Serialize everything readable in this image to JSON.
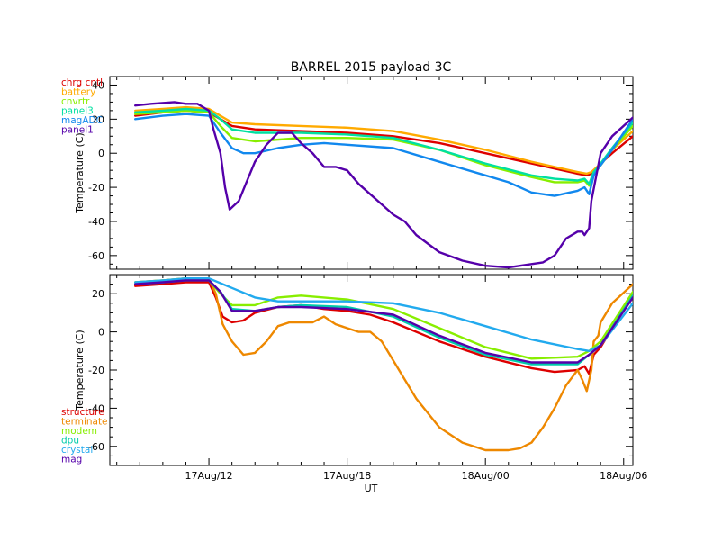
{
  "chart_data": [
    {
      "type": "line",
      "title": "BARREL 2015 payload 3C",
      "xlabel": "",
      "ylabel": "Temperature (C)",
      "x_unit": "hours since 17Aug 00:00 UT",
      "xlim": [
        7.7,
        30.4
      ],
      "ylim": [
        -68,
        45
      ],
      "yticks": [
        -60,
        -40,
        -20,
        0,
        20,
        40
      ],
      "xticks": [
        12,
        18,
        24,
        30
      ],
      "xtick_labels": [
        "17Aug/12",
        "17Aug/18",
        "18Aug/00",
        "18Aug/06"
      ],
      "legend_position": "top-left",
      "series": [
        {
          "name": "chrg cntl",
          "color": "#dd0000",
          "x": [
            8.8,
            10,
            11,
            12,
            12.5,
            13,
            14,
            16,
            18,
            20,
            22,
            24,
            26,
            28,
            28.4,
            28.6,
            29,
            29.5,
            30.4
          ],
          "y": [
            22,
            24,
            25,
            24,
            20,
            16,
            14,
            13,
            12,
            10,
            6,
            0,
            -6,
            -12,
            -13,
            -12,
            -6,
            0,
            10
          ]
        },
        {
          "name": "battery",
          "color": "#ffaa00",
          "x": [
            8.8,
            10,
            11,
            12,
            12.5,
            13,
            14,
            16,
            18,
            20,
            22,
            24,
            26,
            28,
            28.4,
            28.6,
            29,
            29.5,
            30.4
          ],
          "y": [
            25,
            26,
            27,
            26,
            22,
            18,
            17,
            16,
            15,
            13,
            8,
            2,
            -5,
            -11,
            -12,
            -11,
            -6,
            2,
            13
          ]
        },
        {
          "name": "cnvrtr",
          "color": "#88ee00",
          "x": [
            8.8,
            10,
            11,
            12,
            12.5,
            13,
            14,
            16,
            18,
            20,
            22,
            24,
            26,
            27,
            28,
            28.3,
            28.5,
            28.7,
            29,
            29.5,
            30.4
          ],
          "y": [
            23,
            24,
            25,
            24,
            16,
            9,
            7,
            9,
            9,
            8,
            2,
            -7,
            -14,
            -17,
            -17,
            -16,
            -19,
            -12,
            -7,
            2,
            16
          ]
        },
        {
          "name": "panel3",
          "color": "#00e0a0",
          "x": [
            8.8,
            10,
            11,
            12,
            12.5,
            13,
            14,
            16,
            18,
            20,
            22,
            24,
            26,
            27,
            28,
            28.3,
            28.5,
            28.7,
            29,
            29.5,
            30.4
          ],
          "y": [
            24,
            25,
            26,
            25,
            20,
            14,
            12,
            12,
            11,
            9,
            2,
            -6,
            -13,
            -15,
            -16,
            -15,
            -18,
            -11,
            -6,
            3,
            18
          ]
        },
        {
          "name": "magADC",
          "color": "#1188ee",
          "x": [
            8.8,
            10,
            11,
            12,
            12.5,
            13,
            13.5,
            14,
            15,
            16,
            17,
            18,
            20,
            22,
            24,
            25,
            26,
            27,
            28,
            28.3,
            28.5,
            28.7,
            29,
            29.5,
            30.4
          ],
          "y": [
            20,
            22,
            23,
            22,
            12,
            3,
            0,
            0,
            3,
            5,
            6,
            5,
            3,
            -5,
            -13,
            -17,
            -23,
            -25,
            -22,
            -20,
            -24,
            -13,
            -7,
            2,
            20
          ]
        },
        {
          "name": "panel1",
          "color": "#5500aa",
          "x": [
            8.8,
            9.5,
            10.5,
            11,
            11.5,
            12,
            12.2,
            12.5,
            12.7,
            12.9,
            13.3,
            13.6,
            14,
            14.5,
            15,
            15.6,
            16,
            16.5,
            17,
            17.5,
            18,
            18.5,
            19,
            19.5,
            20,
            20.5,
            21,
            22,
            23,
            24,
            25,
            25.5,
            26,
            26.5,
            27,
            27.5,
            28,
            28.2,
            28.3,
            28.5,
            28.6,
            29,
            29.5,
            30.4
          ],
          "y": [
            28,
            29,
            30,
            29,
            29,
            25,
            14,
            0,
            -20,
            -33,
            -28,
            -18,
            -5,
            5,
            12,
            12,
            6,
            0,
            -8,
            -8,
            -10,
            -18,
            -24,
            -30,
            -36,
            -40,
            -48,
            -58,
            -63,
            -66,
            -67,
            -66,
            -65,
            -64,
            -60,
            -50,
            -46,
            -46,
            -48,
            -44,
            -28,
            0,
            10,
            21
          ]
        }
      ]
    },
    {
      "type": "line",
      "title": "",
      "xlabel": "UT",
      "ylabel": "Temperature (C)",
      "x_unit": "hours since 17Aug 00:00 UT",
      "xlim": [
        7.7,
        30.4
      ],
      "ylim": [
        -70,
        30
      ],
      "yticks": [
        -60,
        -40,
        -20,
        0,
        20
      ],
      "xticks": [
        12,
        18,
        24,
        30
      ],
      "xtick_labels": [
        "17Aug/12",
        "17Aug/18",
        "18Aug/00",
        "18Aug/06"
      ],
      "legend_position": "bottom-left",
      "series": [
        {
          "name": "structure",
          "color": "#dd0000",
          "x": [
            8.8,
            10,
            11,
            12,
            12.3,
            12.6,
            13,
            13.5,
            14,
            15,
            16,
            17,
            18,
            19,
            20,
            22,
            24,
            26,
            27,
            28,
            28.3,
            28.5,
            28.7,
            29,
            30.4
          ],
          "y": [
            24,
            25,
            26,
            26,
            18,
            8,
            5,
            6,
            10,
            13,
            14,
            12,
            11,
            9,
            5,
            -5,
            -13,
            -19,
            -21,
            -20,
            -18,
            -22,
            -12,
            -8,
            20
          ]
        },
        {
          "name": "terminate",
          "color": "#ee8800",
          "x": [
            8.8,
            10,
            11,
            12,
            12.3,
            12.6,
            13,
            13.5,
            14,
            14.5,
            15,
            15.5,
            16,
            16.5,
            17,
            17.5,
            18,
            18.5,
            19,
            19.5,
            20,
            20.5,
            21,
            22,
            23,
            24,
            25,
            25.5,
            26,
            26.5,
            27,
            27.5,
            28,
            28.2,
            28.4,
            28.6,
            28.7,
            28.9,
            29,
            29.5,
            30.4
          ],
          "y": [
            26,
            27,
            28,
            28,
            20,
            4,
            -5,
            -12,
            -11,
            -5,
            3,
            5,
            5,
            5,
            8,
            4,
            2,
            0,
            0,
            -5,
            -15,
            -25,
            -35,
            -50,
            -58,
            -62,
            -62,
            -61,
            -58,
            -50,
            -40,
            -28,
            -20,
            -25,
            -31,
            -20,
            -5,
            -2,
            5,
            15,
            25
          ]
        },
        {
          "name": "modem",
          "color": "#88ee00",
          "x": [
            8.8,
            10,
            11,
            12,
            12.5,
            13,
            14,
            15,
            16,
            18,
            20,
            22,
            24,
            26,
            28,
            28.5,
            29,
            30.4
          ],
          "y": [
            26,
            27,
            28,
            27,
            20,
            14,
            14,
            18,
            19,
            17,
            12,
            2,
            -8,
            -14,
            -13,
            -10,
            -5,
            21
          ]
        },
        {
          "name": "dpu",
          "color": "#00ccaa",
          "x": [
            8.8,
            10,
            11,
            12,
            12.5,
            13,
            14,
            15,
            16,
            18,
            20,
            22,
            24,
            26,
            28,
            28.5,
            29,
            30.4
          ],
          "y": [
            25,
            26,
            27,
            27,
            21,
            12,
            11,
            13,
            14,
            13,
            8,
            -3,
            -12,
            -17,
            -17,
            -12,
            -7,
            19
          ]
        },
        {
          "name": "crystal",
          "color": "#22aaee",
          "x": [
            8.8,
            10,
            11,
            12,
            13,
            14,
            15,
            16,
            18,
            20,
            22,
            24,
            26,
            28,
            28.5,
            29,
            30.4
          ],
          "y": [
            26,
            27,
            28,
            28,
            23,
            18,
            16,
            16,
            16,
            15,
            10,
            3,
            -4,
            -9,
            -10,
            -7,
            15
          ]
        },
        {
          "name": "mag",
          "color": "#5500aa",
          "x": [
            8.8,
            10,
            11,
            12,
            12.5,
            13,
            14,
            15,
            16,
            18,
            20,
            22,
            24,
            26,
            28,
            28.5,
            29,
            30.4
          ],
          "y": [
            25,
            26,
            27,
            27,
            21,
            11,
            11,
            13,
            13,
            12,
            9,
            -2,
            -11,
            -16,
            -16,
            -12,
            -7,
            18
          ]
        }
      ]
    }
  ]
}
